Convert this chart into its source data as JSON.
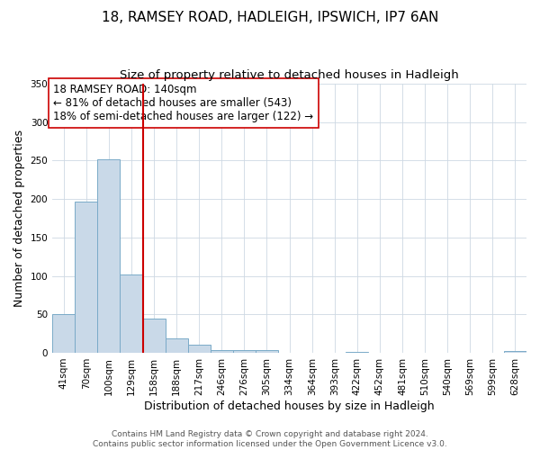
{
  "title": "18, RAMSEY ROAD, HADLEIGH, IPSWICH, IP7 6AN",
  "subtitle": "Size of property relative to detached houses in Hadleigh",
  "xlabel": "Distribution of detached houses by size in Hadleigh",
  "ylabel": "Number of detached properties",
  "bar_labels": [
    "41sqm",
    "70sqm",
    "100sqm",
    "129sqm",
    "158sqm",
    "188sqm",
    "217sqm",
    "246sqm",
    "276sqm",
    "305sqm",
    "334sqm",
    "364sqm",
    "393sqm",
    "422sqm",
    "452sqm",
    "481sqm",
    "510sqm",
    "540sqm",
    "569sqm",
    "599sqm",
    "628sqm"
  ],
  "bar_values": [
    50,
    197,
    252,
    102,
    44,
    19,
    10,
    4,
    3,
    3,
    0,
    0,
    0,
    1,
    0,
    0,
    0,
    0,
    0,
    0,
    2
  ],
  "bar_color": "#c9d9e8",
  "bar_edge_color": "#7aaac8",
  "reference_line_color": "#cc0000",
  "annotation_text": "18 RAMSEY ROAD: 140sqm\n← 81% of detached houses are smaller (543)\n18% of semi-detached houses are larger (122) →",
  "annotation_box_edge_color": "#cc0000",
  "ylim": [
    0,
    350
  ],
  "yticks": [
    0,
    50,
    100,
    150,
    200,
    250,
    300,
    350
  ],
  "footer_line1": "Contains HM Land Registry data © Crown copyright and database right 2024.",
  "footer_line2": "Contains public sector information licensed under the Open Government Licence v3.0.",
  "title_fontsize": 11,
  "subtitle_fontsize": 9.5,
  "axis_label_fontsize": 9,
  "tick_fontsize": 7.5,
  "annotation_fontsize": 8.5,
  "footer_fontsize": 6.5
}
